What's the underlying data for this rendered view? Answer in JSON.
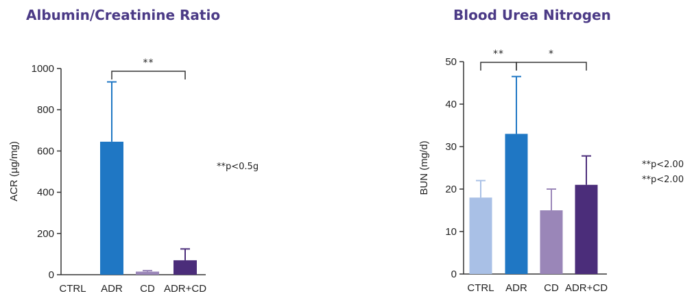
{
  "chart_data": [
    {
      "type": "bar",
      "title": "Albumin/Creatinine Ratio",
      "ylabel": "ACR (µg/mg)",
      "xlabel": "",
      "ylim": [
        0,
        1000
      ],
      "yticks": [
        0,
        200,
        400,
        600,
        800,
        1000
      ],
      "categories": [
        "CTRL",
        "ADR",
        "CD",
        "ADR+CD"
      ],
      "values": [
        0,
        645,
        15,
        70
      ],
      "errors": [
        0,
        290,
        5,
        55
      ],
      "colors": [
        "#a9c0e6",
        "#1f77c4",
        "#9a86b8",
        "#4b2d7a"
      ],
      "significance": [
        {
          "from": 1,
          "to": 3,
          "label": "**"
        }
      ],
      "note": "**p<0.5g"
    },
    {
      "type": "bar",
      "title": "Blood Urea Nitrogen",
      "ylabel": "BUN (mg/d)",
      "xlabel": "",
      "ylim": [
        0,
        50
      ],
      "yticks": [
        0,
        10,
        20,
        30,
        40,
        50
      ],
      "categories": [
        "CTRL",
        "ADR",
        "CD",
        "ADR+CD"
      ],
      "values": [
        18,
        33,
        15,
        21
      ],
      "errors": [
        4,
        13.5,
        5,
        6.8
      ],
      "colors": [
        "#a9c0e6",
        "#1f77c4",
        "#9a86b8",
        "#4b2d7a"
      ],
      "significance": [
        {
          "from": 0,
          "to": 1,
          "label": "**"
        },
        {
          "from": 1,
          "to": 3,
          "label": "*"
        }
      ],
      "notes": [
        "**p<2.00",
        "**p<2.00"
      ]
    }
  ]
}
